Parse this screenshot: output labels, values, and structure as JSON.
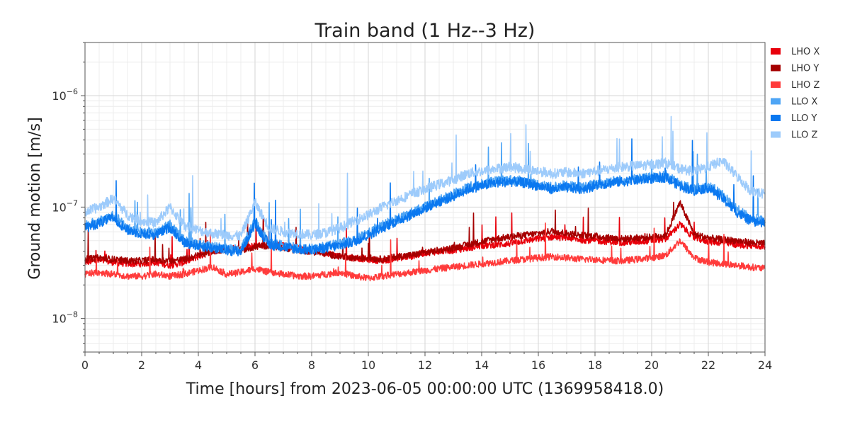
{
  "chart_data": {
    "type": "line",
    "title": "Train band (1 Hz--3 Hz)",
    "xlabel": "Time [hours] from 2023-06-05 00:00:00 UTC (1369958418.0)",
    "ylabel": "Ground motion [m/s]",
    "xlim": [
      0,
      24
    ],
    "ylim": [
      5e-09,
      3e-06
    ],
    "yscale": "log",
    "grid": true,
    "legend_position": "outside-top-right",
    "x_ticks": [
      0,
      2,
      4,
      6,
      8,
      10,
      12,
      14,
      16,
      18,
      20,
      22,
      24
    ],
    "x_tick_labels": [
      "0",
      "2",
      "4",
      "6",
      "8",
      "10",
      "12",
      "14",
      "16",
      "18",
      "20",
      "22",
      "24"
    ],
    "y_ticks": [
      1e-08,
      1e-07,
      1e-06
    ],
    "y_tick_bases": [
      "10",
      "10",
      "10"
    ],
    "y_tick_exponents": [
      "−8",
      "−7",
      "−6"
    ],
    "series": [
      {
        "name": "LHO X",
        "color": "#e8000b",
        "x": [
          0,
          0.5,
          1,
          1.5,
          2,
          2.5,
          3,
          3.5,
          4,
          4.5,
          5,
          5.5,
          6,
          6.5,
          7,
          7.5,
          8,
          8.5,
          9,
          9.5,
          10,
          10.5,
          11,
          11.5,
          12,
          12.5,
          13,
          13.5,
          14,
          14.5,
          15,
          15.5,
          16,
          16.5,
          17,
          17.5,
          18,
          18.5,
          19,
          19.5,
          20,
          20.5,
          21,
          21.5,
          22,
          22.5,
          23,
          23.5,
          24
        ],
        "y": [
          3.2e-08,
          3.3e-08,
          3.2e-08,
          3.1e-08,
          3.1e-08,
          3.2e-08,
          3e-08,
          3.2e-08,
          3.6e-08,
          4e-08,
          4.3e-08,
          4.2e-08,
          4.5e-08,
          4.6e-08,
          4.5e-08,
          4.3e-08,
          4.1e-08,
          3.9e-08,
          3.6e-08,
          3.5e-08,
          3.4e-08,
          3.3e-08,
          3.5e-08,
          3.6e-08,
          3.9e-08,
          4e-08,
          4.1e-08,
          4.3e-08,
          4.5e-08,
          4.6e-08,
          4.7e-08,
          5e-08,
          5.2e-08,
          5.4e-08,
          5.3e-08,
          5.1e-08,
          5e-08,
          4.9e-08,
          4.8e-08,
          4.9e-08,
          5e-08,
          5.2e-08,
          7e-08,
          5.3e-08,
          4.9e-08,
          4.8e-08,
          4.6e-08,
          4.5e-08,
          4.4e-08
        ]
      },
      {
        "name": "LHO Y",
        "color": "#a50000",
        "x": [
          0,
          0.5,
          1,
          1.5,
          2,
          2.5,
          3,
          3.5,
          4,
          4.5,
          5,
          5.5,
          6,
          6.5,
          7,
          7.5,
          8,
          8.5,
          9,
          9.5,
          10,
          10.5,
          11,
          11.5,
          12,
          12.5,
          13,
          13.5,
          14,
          14.5,
          15,
          15.5,
          16,
          16.5,
          17,
          17.5,
          18,
          18.5,
          19,
          19.5,
          20,
          20.5,
          21,
          21.5,
          22,
          22.5,
          23,
          23.5,
          24
        ],
        "y": [
          3.4e-08,
          3.5e-08,
          3.4e-08,
          3.3e-08,
          3.3e-08,
          3.4e-08,
          3.3e-08,
          3.4e-08,
          3.7e-08,
          4e-08,
          4.2e-08,
          4.1e-08,
          4.4e-08,
          4.5e-08,
          4.3e-08,
          4.1e-08,
          4e-08,
          3.8e-08,
          3.6e-08,
          3.5e-08,
          3.5e-08,
          3.4e-08,
          3.6e-08,
          3.7e-08,
          3.9e-08,
          4.1e-08,
          4.3e-08,
          4.6e-08,
          4.9e-08,
          5.2e-08,
          5.4e-08,
          5.6e-08,
          5.8e-08,
          6.1e-08,
          5.8e-08,
          5.6e-08,
          5.5e-08,
          5.3e-08,
          5.2e-08,
          5.3e-08,
          5.4e-08,
          5.6e-08,
          1.1e-07,
          5.7e-08,
          5.3e-08,
          5.1e-08,
          5e-08,
          4.8e-08,
          4.7e-08
        ]
      },
      {
        "name": "LHO Z",
        "color": "#ff3b3b",
        "x": [
          0,
          0.5,
          1,
          1.5,
          2,
          2.5,
          3,
          3.5,
          4,
          4.5,
          5,
          5.5,
          6,
          6.5,
          7,
          7.5,
          8,
          8.5,
          9,
          9.5,
          10,
          10.5,
          11,
          11.5,
          12,
          12.5,
          13,
          13.5,
          14,
          14.5,
          15,
          15.5,
          16,
          16.5,
          17,
          17.5,
          18,
          18.5,
          19,
          19.5,
          20,
          20.5,
          21,
          21.5,
          22,
          22.5,
          23,
          23.5,
          24
        ],
        "y": [
          2.5e-08,
          2.6e-08,
          2.5e-08,
          2.4e-08,
          2.4e-08,
          2.5e-08,
          2.4e-08,
          2.5e-08,
          2.7e-08,
          2.9e-08,
          2.5e-08,
          2.6e-08,
          2.8e-08,
          2.6e-08,
          2.5e-08,
          2.4e-08,
          2.4e-08,
          2.5e-08,
          2.6e-08,
          2.4e-08,
          2.3e-08,
          2.4e-08,
          2.5e-08,
          2.6e-08,
          2.7e-08,
          2.8e-08,
          2.9e-08,
          3e-08,
          3.1e-08,
          3.2e-08,
          3.3e-08,
          3.4e-08,
          3.5e-08,
          3.6e-08,
          3.5e-08,
          3.4e-08,
          3.4e-08,
          3.3e-08,
          3.3e-08,
          3.4e-08,
          3.5e-08,
          3.7e-08,
          5e-08,
          3.5e-08,
          3.2e-08,
          3.1e-08,
          3e-08,
          2.9e-08,
          2.8e-08
        ]
      },
      {
        "name": "LLO X",
        "color": "#4ea5f5",
        "x": [
          0,
          0.5,
          1,
          1.5,
          2,
          2.5,
          3,
          3.5,
          4,
          4.5,
          5,
          5.5,
          6,
          6.5,
          7,
          7.5,
          8,
          8.5,
          9,
          9.5,
          10,
          10.5,
          11,
          11.5,
          12,
          12.5,
          13,
          13.5,
          14,
          14.5,
          15,
          15.5,
          16,
          16.5,
          17,
          17.5,
          18,
          18.5,
          19,
          19.5,
          20,
          20.5,
          21,
          21.5,
          22,
          22.5,
          23,
          23.5,
          24
        ],
        "y": [
          6.8e-08,
          7.5e-08,
          8.5e-08,
          6.5e-08,
          6e-08,
          5.8e-08,
          7e-08,
          5e-08,
          4.6e-08,
          4.4e-08,
          4.2e-08,
          4.1e-08,
          7.5e-08,
          4.8e-08,
          4.5e-08,
          4.3e-08,
          4.2e-08,
          4.4e-08,
          4.7e-08,
          5e-08,
          5.8e-08,
          6.8e-08,
          7.8e-08,
          8.8e-08,
          1e-07,
          1.15e-07,
          1.3e-07,
          1.5e-07,
          1.6e-07,
          1.7e-07,
          1.75e-07,
          1.7e-07,
          1.6e-07,
          1.5e-07,
          1.55e-07,
          1.5e-07,
          1.6e-07,
          1.7e-07,
          1.75e-07,
          1.8e-07,
          1.85e-07,
          1.9e-07,
          1.6e-07,
          1.45e-07,
          1.55e-07,
          1.3e-07,
          9.5e-08,
          8e-08,
          7.5e-08
        ]
      },
      {
        "name": "LLO Y",
        "color": "#0a78f0",
        "x": [
          0,
          0.5,
          1,
          1.5,
          2,
          2.5,
          3,
          3.5,
          4,
          4.5,
          5,
          5.5,
          6,
          6.5,
          7,
          7.5,
          8,
          8.5,
          9,
          9.5,
          10,
          10.5,
          11,
          11.5,
          12,
          12.5,
          13,
          13.5,
          14,
          14.5,
          15,
          15.5,
          16,
          16.5,
          17,
          17.5,
          18,
          18.5,
          19,
          19.5,
          20,
          20.5,
          21,
          21.5,
          22,
          22.5,
          23,
          23.5,
          24
        ],
        "y": [
          6.5e-08,
          7.2e-08,
          8e-08,
          6.2e-08,
          5.8e-08,
          5.6e-08,
          6.6e-08,
          4.8e-08,
          4.5e-08,
          4.3e-08,
          4.1e-08,
          4e-08,
          7e-08,
          4.6e-08,
          4.4e-08,
          4.2e-08,
          4.1e-08,
          4.3e-08,
          4.5e-08,
          4.9e-08,
          5.6e-08,
          6.5e-08,
          7.5e-08,
          8.5e-08,
          9.8e-08,
          1.12e-07,
          1.25e-07,
          1.45e-07,
          1.55e-07,
          1.65e-07,
          1.7e-07,
          1.65e-07,
          1.55e-07,
          1.45e-07,
          1.5e-07,
          1.45e-07,
          1.55e-07,
          1.65e-07,
          1.7e-07,
          1.75e-07,
          1.8e-07,
          1.85e-07,
          1.55e-07,
          1.4e-07,
          1.5e-07,
          1.2e-07,
          9e-08,
          7.5e-08,
          7.2e-08
        ]
      },
      {
        "name": "LLO Z",
        "color": "#9dcbfb",
        "x": [
          0,
          0.5,
          1,
          1.5,
          2,
          2.5,
          3,
          3.5,
          4,
          4.5,
          5,
          5.5,
          6,
          6.5,
          7,
          7.5,
          8,
          8.5,
          9,
          9.5,
          10,
          10.5,
          11,
          11.5,
          12,
          12.5,
          13,
          13.5,
          14,
          14.5,
          15,
          15.5,
          16,
          16.5,
          17,
          17.5,
          18,
          18.5,
          19,
          19.5,
          20,
          20.5,
          21,
          21.5,
          22,
          22.5,
          23,
          23.5,
          24
        ],
        "y": [
          9e-08,
          1e-07,
          1.2e-07,
          8.5e-08,
          7.5e-08,
          7.2e-08,
          1e-07,
          6.8e-08,
          6.2e-08,
          5.8e-08,
          5.6e-08,
          5.5e-08,
          1.1e-07,
          6.5e-08,
          6e-08,
          5.8e-08,
          5.6e-08,
          5.9e-08,
          6.5e-08,
          7.5e-08,
          8.5e-08,
          1e-07,
          1.15e-07,
          1.3e-07,
          1.45e-07,
          1.6e-07,
          1.75e-07,
          2e-07,
          2.1e-07,
          2.2e-07,
          2.3e-07,
          2.2e-07,
          2.1e-07,
          2e-07,
          2.05e-07,
          2e-07,
          2.1e-07,
          2.2e-07,
          2.3e-07,
          2.35e-07,
          2.4e-07,
          2.5e-07,
          2.2e-07,
          2.1e-07,
          2.3e-07,
          2.6e-07,
          1.9e-07,
          1.4e-07,
          1.3e-07
        ]
      }
    ]
  }
}
